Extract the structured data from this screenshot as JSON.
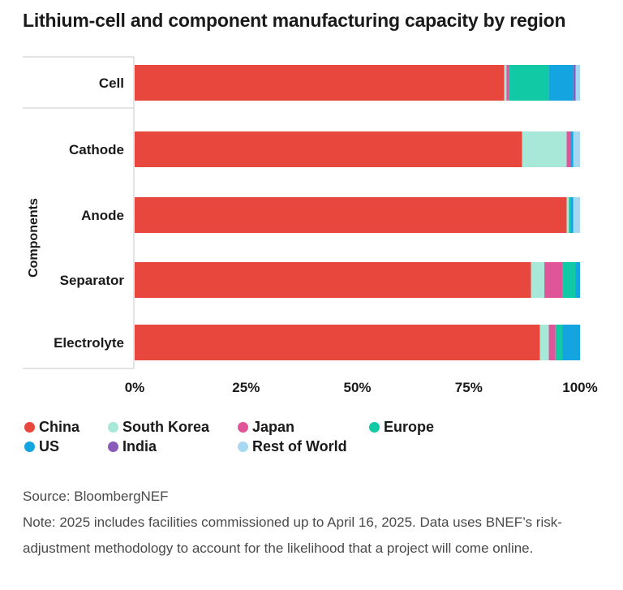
{
  "title": "Lithium-cell and component manufacturing capacity by region",
  "chart_data": {
    "type": "bar",
    "orientation": "horizontal",
    "stacked": true,
    "percent": true,
    "title": "Lithium-cell and component manufacturing capacity by region",
    "group_label": "Components",
    "categories": [
      "Cell",
      "Cathode",
      "Anode",
      "Separator",
      "Electrolyte"
    ],
    "xlim": [
      0,
      100
    ],
    "xticks": [
      "0%",
      "25%",
      "50%",
      "75%",
      "100%"
    ],
    "tick_values": [
      0,
      25,
      50,
      75,
      100
    ],
    "legend_position": "bottom",
    "series": [
      {
        "name": "China",
        "color": "#E8473D",
        "values": [
          83,
          87,
          97,
          89,
          91
        ]
      },
      {
        "name": "South Korea",
        "color": "#A8E8D9",
        "values": [
          0.5,
          10,
          0.5,
          3,
          2
        ]
      },
      {
        "name": "Japan",
        "color": "#E0559A",
        "values": [
          0.5,
          1,
          0,
          4,
          1.5
        ]
      },
      {
        "name": "Europe",
        "color": "#12C9A6",
        "values": [
          9,
          0,
          0.5,
          3,
          1.5
        ]
      },
      {
        "name": "US",
        "color": "#14A5E0",
        "values": [
          5.5,
          0.5,
          0.5,
          1,
          4
        ]
      },
      {
        "name": "India",
        "color": "#8A5BB8",
        "values": [
          0.5,
          0,
          0,
          0,
          0
        ]
      },
      {
        "name": "Rest of World",
        "color": "#A7D8F2",
        "values": [
          1,
          1.5,
          1.5,
          0,
          0
        ]
      }
    ]
  },
  "legend": {
    "items": [
      {
        "label": "China",
        "color": "#E8473D"
      },
      {
        "label": "South Korea",
        "color": "#A8E8D9"
      },
      {
        "label": "Japan",
        "color": "#E0559A"
      },
      {
        "label": "Europe",
        "color": "#12C9A6"
      },
      {
        "label": "US",
        "color": "#14A5E0"
      },
      {
        "label": "India",
        "color": "#8A5BB8"
      },
      {
        "label": "Rest of World",
        "color": "#A7D8F2"
      }
    ]
  },
  "footer": {
    "source": "Source: BloombergNEF",
    "note": "Note: 2025 includes facilities commissioned up to April 16, 2025. Data uses BNEF’s risk-adjustment methodology to account for the likelihood that a project will come online."
  }
}
